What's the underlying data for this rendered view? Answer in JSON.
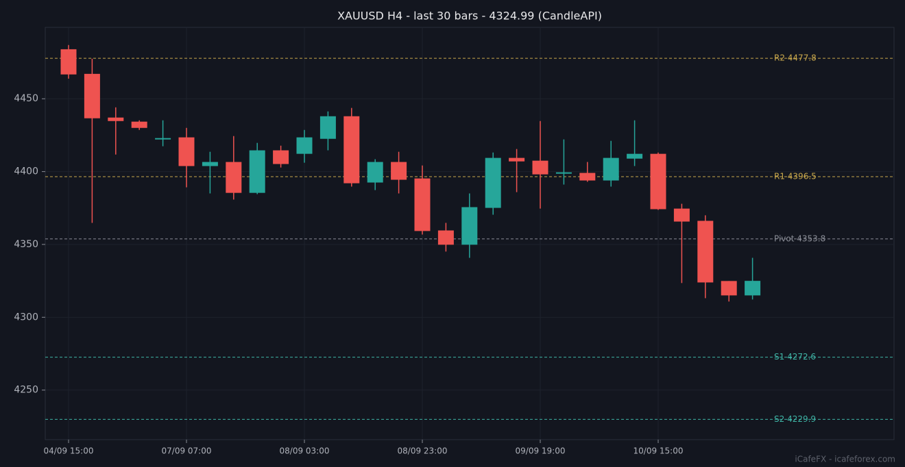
{
  "chart_data": {
    "type": "candlestick",
    "title": "XAUUSD H4 - last 30 bars - 4324.99 (CandleAPI)",
    "footer": "iCafeFX - icafeforex.com",
    "categories": [
      "04/09 15:00",
      null,
      null,
      null,
      null,
      "07/09 07:00",
      null,
      null,
      null,
      null,
      "08/09 03:00",
      null,
      null,
      null,
      null,
      "08/09 23:00",
      null,
      null,
      null,
      null,
      "09/09 19:00",
      null,
      null,
      null,
      null,
      "10/09 15:00",
      null,
      null,
      null,
      null
    ],
    "open": [
      4484.0,
      4467.1,
      4437.1,
      4434.3,
      4422.1,
      4423.5,
      4403.8,
      4406.6,
      4385.4,
      4414.6,
      4412.2,
      4422.5,
      4438.0,
      4392.5,
      4406.6,
      4395.3,
      4359.6,
      4349.8,
      4375.1,
      4409.4,
      4407.5,
      4398.6,
      4399.1,
      4393.9,
      4408.9,
      4412.2,
      4374.6,
      4366.2,
      4324.9,
      4315.0
    ],
    "high": [
      4486.9,
      4477.5,
      4444.1,
      4435.2,
      4435.2,
      4430.0,
      4413.6,
      4424.4,
      4419.7,
      4417.8,
      4428.6,
      4441.3,
      4443.7,
      4408.5,
      4413.6,
      4404.2,
      4364.8,
      4385.0,
      4413.1,
      4415.5,
      4434.7,
      4422.1,
      4406.6,
      4421.1,
      4435.2,
      4413.1,
      4377.9,
      4370.0,
      4324.9,
      4340.8
    ],
    "low": [
      4463.8,
      4364.8,
      4411.7,
      4428.6,
      4417.4,
      4389.2,
      4385.0,
      4380.8,
      4384.5,
      4402.8,
      4406.1,
      4414.6,
      4389.7,
      4387.3,
      4385.0,
      4356.8,
      4345.1,
      4340.8,
      4370.4,
      4385.9,
      4374.6,
      4391.1,
      4393.0,
      4389.7,
      4403.8,
      4373.7,
      4323.5,
      4313.1,
      4310.8,
      4312.2
    ],
    "close": [
      4466.7,
      4436.6,
      4434.7,
      4430.0,
      4423.0,
      4403.8,
      4406.6,
      4385.4,
      4414.6,
      4405.2,
      4423.5,
      4438.0,
      4392.0,
      4406.6,
      4394.4,
      4359.2,
      4349.8,
      4375.6,
      4409.4,
      4407.0,
      4398.1,
      4399.5,
      4393.9,
      4409.4,
      4412.2,
      4374.2,
      4365.7,
      4323.9,
      4315.0,
      4324.99
    ],
    "up_color": "#26a69a",
    "down_color": "#ef5350",
    "ylim": [
      4216,
      4499
    ],
    "yticks": [
      4250,
      4300,
      4350,
      4400,
      4450
    ],
    "grid": true,
    "levels": [
      {
        "value": 4477.8,
        "label": "R2 4477.8",
        "color": "#c9a84c"
      },
      {
        "value": 4396.5,
        "label": "R1 4396.5",
        "color": "#c9a84c"
      },
      {
        "value": 4353.8,
        "label": "Pivot 4353.8",
        "color": "#8a8d96"
      },
      {
        "value": 4272.6,
        "label": "S1 4272.6",
        "color": "#3fb5a6"
      },
      {
        "value": 4229.9,
        "label": "S2 4229.9",
        "color": "#3fb5a6"
      }
    ]
  }
}
